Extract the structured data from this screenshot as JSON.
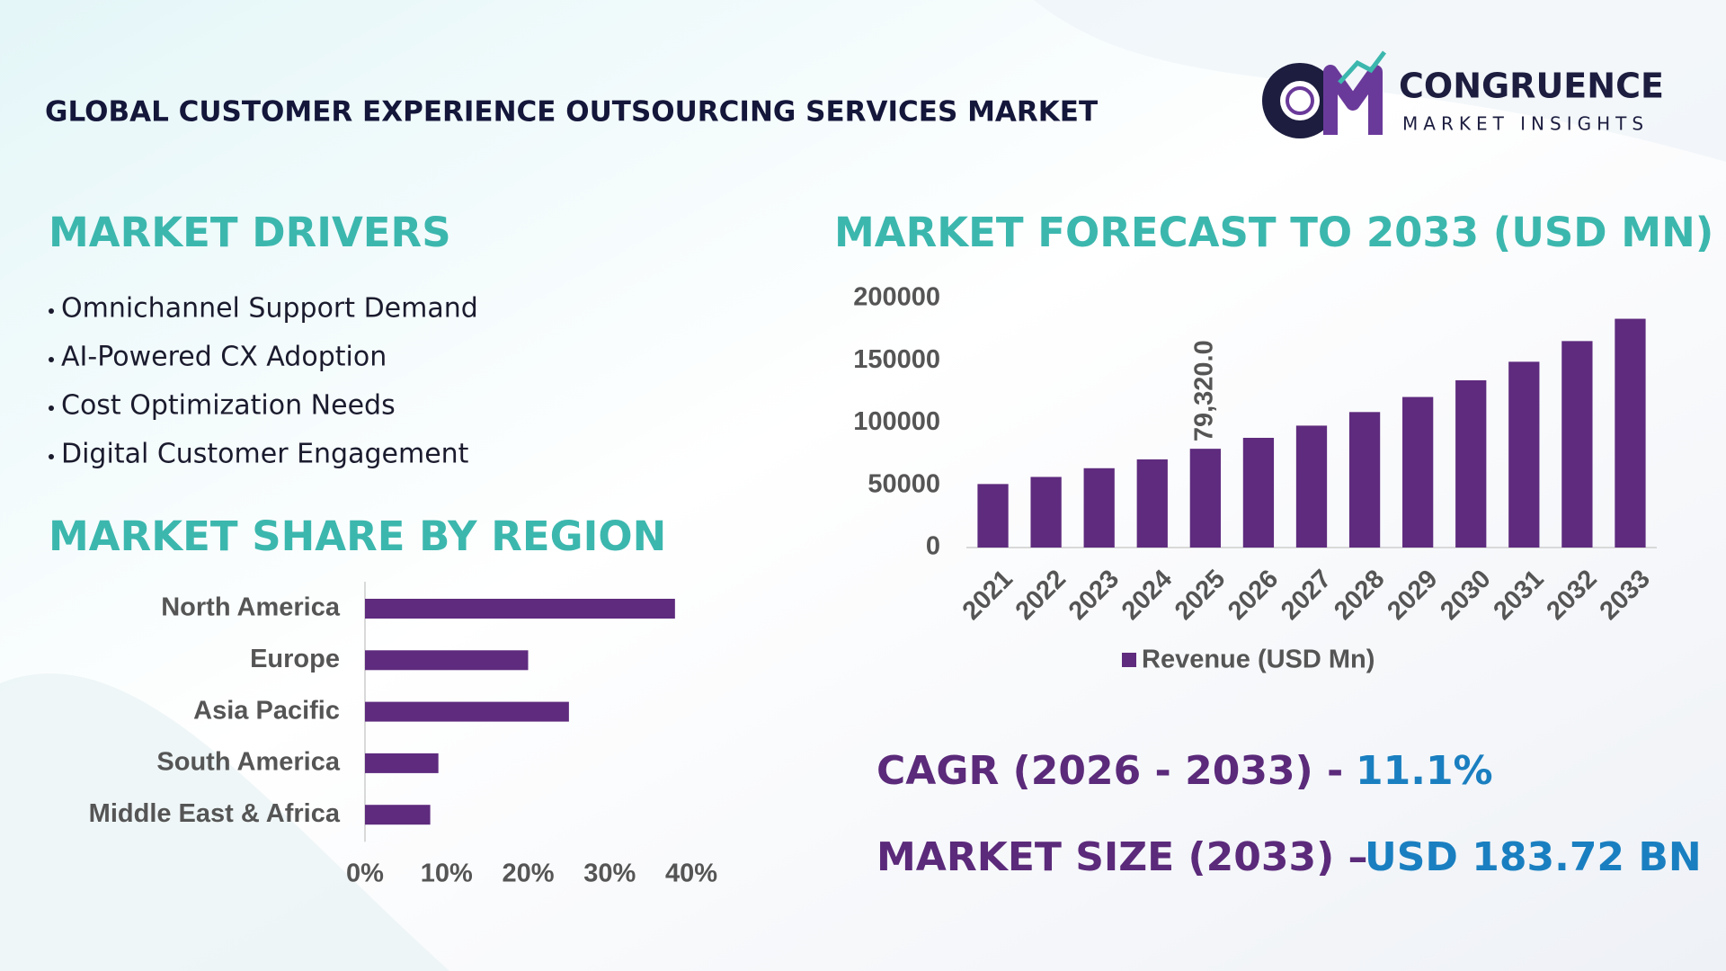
{
  "header": {
    "title": "GLOBAL CUSTOMER EXPERIENCE OUTSOURCING SERVICES MARKET",
    "logo": {
      "name": "CONGRUENCE",
      "tagline": "MARKET INSIGHTS"
    }
  },
  "drivers": {
    "title": "MARKET DRIVERS",
    "items": [
      "Omnichannel Support Demand",
      "AI-Powered CX Adoption",
      "Cost Optimization Needs",
      "Digital Customer Engagement"
    ]
  },
  "cagr": {
    "label": "CAGR (2026 - 2033) -",
    "value": "11.1%"
  },
  "market_size": {
    "label": "MARKET SIZE (2033) –",
    "value": "USD 183.72 BN"
  },
  "chart_data": [
    {
      "type": "hbar",
      "title": "MARKET SHARE BY REGION",
      "categories": [
        "North America",
        "Europe",
        "Asia Pacific",
        "South America",
        "Middle East & Africa"
      ],
      "values": [
        38,
        20,
        25,
        9,
        8
      ],
      "color": "#5e2b7e",
      "xlim": [
        0,
        40
      ],
      "xticks": [
        {
          "value": 0,
          "label": "0%"
        },
        {
          "value": 10,
          "label": "10%"
        },
        {
          "value": 20,
          "label": "20%"
        },
        {
          "value": 30,
          "label": "30%"
        },
        {
          "value": 40,
          "label": "40%"
        }
      ]
    },
    {
      "type": "bar",
      "title": "MARKET FORECAST TO 2033 (USD MN)",
      "categories": [
        "2021",
        "2022",
        "2023",
        "2024",
        "2025",
        "2026",
        "2027",
        "2028",
        "2029",
        "2030",
        "2031",
        "2032",
        "2033"
      ],
      "series": [
        {
          "name": "Revenue (USD Mn)",
          "color": "#5e2b7e",
          "values": [
            51000,
            56700,
            63700,
            70800,
            79320,
            88100,
            97900,
            108800,
            120900,
            134300,
            149200,
            165800,
            183720
          ],
          "value_labels": [
            null,
            null,
            null,
            null,
            "79,320.0",
            null,
            null,
            null,
            null,
            null,
            null,
            null,
            null
          ]
        }
      ],
      "ylim": [
        0,
        200000
      ],
      "yticks": [
        0,
        50000,
        100000,
        150000,
        200000
      ],
      "legend": "bottom"
    }
  ]
}
